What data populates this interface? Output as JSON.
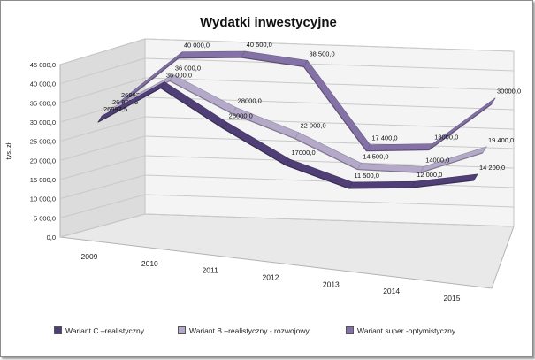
{
  "chart_data": {
    "type": "line",
    "title": "Wydatki inwestycyjne",
    "ylabel": "tys. zł",
    "xlabel": "",
    "ylim": [
      0,
      45000
    ],
    "yticks": [
      "0,0",
      "5 000,0",
      "10 000,0",
      "15 000,0",
      "20 000,0",
      "25 000,0",
      "30 000,0",
      "35 000,0",
      "40 000,0",
      "45 000,0"
    ],
    "ytick_values": [
      0,
      5000,
      10000,
      15000,
      20000,
      25000,
      30000,
      35000,
      40000,
      45000
    ],
    "categories": [
      "2009",
      "2010",
      "2011",
      "2012",
      "2013",
      "2014",
      "2015"
    ],
    "grid": true,
    "legend_position": "bottom",
    "series": [
      {
        "name": "Wariant C –realistyczny",
        "color": "#4f3f76",
        "values": [
          26997.5,
          36000,
          26000,
          17000,
          11500,
          12000,
          14200
        ],
        "labels": [
          "26997,5",
          "36 000,0",
          "26000,0",
          "17000,0",
          "11 500,0",
          "12 000,0",
          "14 200,0"
        ]
      },
      {
        "name": "Wariant B –realistyczny - rozwojowy",
        "color": "#b4a9c9",
        "values": [
          26997.5,
          36000,
          28000,
          22000,
          14500,
          14000,
          19400
        ],
        "labels": [
          "26 997,5",
          "36 000,0",
          "28000,0",
          "22 000,0",
          "14 500,0",
          "14000,0",
          "19 400,0"
        ]
      },
      {
        "name": "Wariant super  -optymistyczny",
        "color": "#8472a6",
        "values": [
          26997.5,
          40000,
          40500,
          38500,
          17400,
          18000,
          30000
        ],
        "labels": [
          "26997,5",
          "40 000,0",
          "40 500,0",
          "38 500,0",
          "17 400,0",
          "18000,0",
          "30000,0"
        ]
      }
    ]
  }
}
